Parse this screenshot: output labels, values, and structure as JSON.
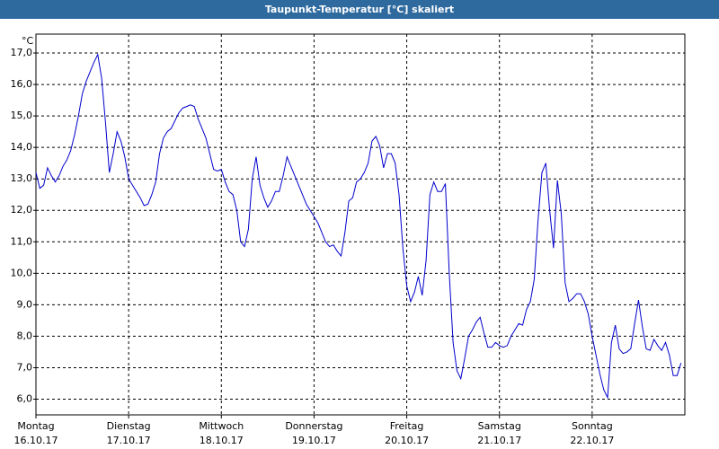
{
  "chart_data": {
    "type": "line",
    "title": "Taupunkt-Temperatur [°C] skaliert",
    "y_unit": "°C",
    "x": [
      0,
      1,
      2,
      3,
      4,
      5,
      6,
      7,
      8,
      9,
      10,
      11,
      12,
      13,
      14,
      15,
      16,
      17,
      18,
      19,
      20,
      21,
      22,
      23,
      24,
      25,
      26,
      27,
      28,
      29,
      30,
      31,
      32,
      33,
      34,
      35,
      36,
      37,
      38,
      39,
      40,
      41,
      42,
      43,
      44,
      45,
      46,
      47,
      48,
      49,
      50,
      51,
      52,
      53,
      54,
      55,
      56,
      57,
      58,
      59,
      60,
      61,
      62,
      63,
      64,
      65,
      66,
      67,
      68,
      69,
      70,
      71,
      72,
      73,
      74,
      75,
      76,
      77,
      78,
      79,
      80,
      81,
      82,
      83,
      84,
      85,
      86,
      87,
      88,
      89,
      90,
      91,
      92,
      93,
      94,
      95,
      96,
      97,
      98,
      99,
      100,
      101,
      102,
      103,
      104,
      105,
      106,
      107,
      108,
      109,
      110,
      111,
      112,
      113,
      114,
      115,
      116,
      117,
      118,
      119,
      120,
      121,
      122,
      123,
      124,
      125,
      126,
      127,
      128,
      129,
      130,
      131,
      132,
      133,
      134,
      135,
      136,
      137,
      138,
      139,
      140,
      141,
      142,
      143,
      144,
      145,
      146,
      147,
      148,
      149,
      150,
      151,
      152,
      153,
      154,
      155,
      156,
      157,
      158,
      159,
      160,
      161,
      162,
      163,
      164,
      165,
      166,
      167
    ],
    "series": [
      {
        "color": "#0000cc",
        "values": [
          13.2,
          12.7,
          12.8,
          13.35,
          13.1,
          12.9,
          13.1,
          13.4,
          13.6,
          13.9,
          14.4,
          15.0,
          15.7,
          16.1,
          16.4,
          16.7,
          16.95,
          16.2,
          14.8,
          13.2,
          13.8,
          14.5,
          14.2,
          13.7,
          13.0,
          12.8,
          12.6,
          12.4,
          12.15,
          12.2,
          12.5,
          12.9,
          13.8,
          14.3,
          14.5,
          14.6,
          14.85,
          15.1,
          15.25,
          15.3,
          15.35,
          15.3,
          14.9,
          14.6,
          14.3,
          13.8,
          13.3,
          13.25,
          13.3,
          12.9,
          12.6,
          12.5,
          12.0,
          11.0,
          10.85,
          11.4,
          13.0,
          13.7,
          12.8,
          12.4,
          12.1,
          12.3,
          12.6,
          12.6,
          13.1,
          13.7,
          13.4,
          13.1,
          12.8,
          12.5,
          12.2,
          12.0,
          11.8,
          11.6,
          11.3,
          11.0,
          10.85,
          10.9,
          10.7,
          10.55,
          11.3,
          12.3,
          12.4,
          12.9,
          13.0,
          13.2,
          13.5,
          14.2,
          14.35,
          14.05,
          13.35,
          13.8,
          13.8,
          13.5,
          12.5,
          10.8,
          9.6,
          9.1,
          9.4,
          9.9,
          9.3,
          10.4,
          12.5,
          12.9,
          12.6,
          12.6,
          12.85,
          10.0,
          7.8,
          6.9,
          6.65,
          7.3,
          8.0,
          8.2,
          8.45,
          8.6,
          8.1,
          7.65,
          7.65,
          7.8,
          7.7,
          7.65,
          7.7,
          8.0,
          8.2,
          8.4,
          8.35,
          8.85,
          9.1,
          9.8,
          11.7,
          13.2,
          13.5,
          12.0,
          10.8,
          12.95,
          11.9,
          9.7,
          9.1,
          9.2,
          9.35,
          9.35,
          9.1,
          8.7,
          8.0,
          7.4,
          6.8,
          6.3,
          6.05,
          7.8,
          8.35,
          7.6,
          7.45,
          7.5,
          7.6,
          8.4,
          9.15,
          8.3,
          7.6,
          7.55,
          7.9,
          7.7,
          7.55,
          7.8,
          7.4,
          6.75,
          6.75,
          7.15
        ]
      }
    ],
    "xlim": [
      0,
      168
    ],
    "xticks": [
      {
        "value": 0,
        "label": "Montag",
        "date": "16.10.17"
      },
      {
        "value": 24,
        "label": "Dienstag",
        "date": "17.10.17"
      },
      {
        "value": 48,
        "label": "Mittwoch",
        "date": "18.10.17"
      },
      {
        "value": 72,
        "label": "Donnerstag",
        "date": "19.10.17"
      },
      {
        "value": 96,
        "label": "Freitag",
        "date": "20.10.17"
      },
      {
        "value": 120,
        "label": "Samstag",
        "date": "21.10.17"
      },
      {
        "value": 144,
        "label": "Sonntag",
        "date": "22.10.17"
      }
    ],
    "ylim": [
      5.5,
      17.6
    ],
    "yticks": [
      {
        "value": 6,
        "label": "6,0"
      },
      {
        "value": 7,
        "label": "7,0"
      },
      {
        "value": 8,
        "label": "8,0"
      },
      {
        "value": 9,
        "label": "9,0"
      },
      {
        "value": 10,
        "label": "10,0"
      },
      {
        "value": 11,
        "label": "11,0"
      },
      {
        "value": 12,
        "label": "12,0"
      },
      {
        "value": 13,
        "label": "13,0"
      },
      {
        "value": 14,
        "label": "14,0"
      },
      {
        "value": 15,
        "label": "15,0"
      },
      {
        "value": 16,
        "label": "16,0"
      },
      {
        "value": 17,
        "label": "17,0"
      }
    ],
    "grid": true
  }
}
